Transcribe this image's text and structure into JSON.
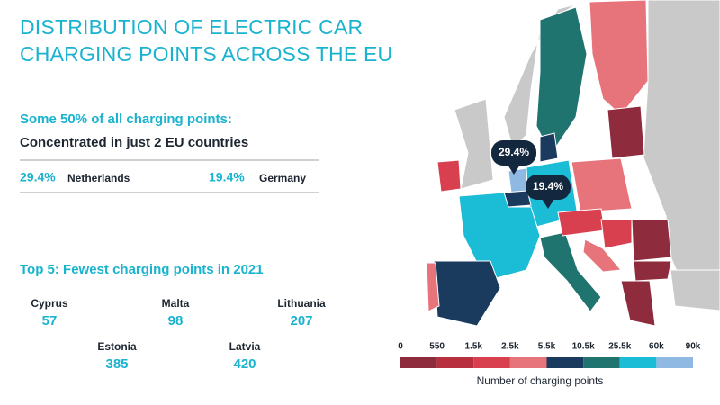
{
  "header": {
    "title_line1": "DISTRIBUTION OF ELECTRIC CAR",
    "title_line2": "CHARGING POINTS ACROSS THE EU"
  },
  "highlight": {
    "heading": "Some 50% of all charging points:",
    "subheading": "Concentrated in just 2 EU countries",
    "items": [
      {
        "share": "29.4%",
        "country": "Netherlands"
      },
      {
        "share": "19.4%",
        "country": "Germany"
      }
    ]
  },
  "fewest": {
    "heading": "Top 5: Fewest charging points in 2021",
    "items": [
      {
        "country": "Cyprus",
        "value": 57
      },
      {
        "country": "Malta",
        "value": 98
      },
      {
        "country": "Lithuania",
        "value": 207
      },
      {
        "country": "Estonia",
        "value": 385
      },
      {
        "country": "Latvia",
        "value": 420
      }
    ]
  },
  "map": {
    "legend": {
      "labels": [
        "0",
        "550",
        "1.5k",
        "2.5k",
        "5.5k",
        "10.5k",
        "25.5k",
        "60k",
        "90k"
      ],
      "colors": [
        "#8e2b3d",
        "#b8303f",
        "#d9404f",
        "#e7737b",
        "#1a3a5e",
        "#1f7470",
        "#1bbcd6",
        "#8fb9e3"
      ],
      "title": "Number of charging points"
    }
  }
}
